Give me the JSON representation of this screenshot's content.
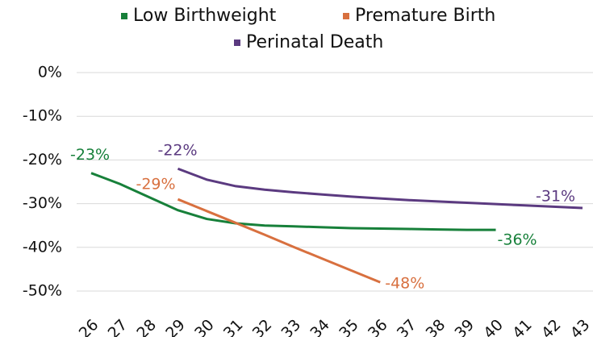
{
  "chart_data": {
    "type": "line",
    "categories": [
      "26",
      "27",
      "28",
      "29",
      "30",
      "31",
      "32",
      "33",
      "34",
      "35",
      "36",
      "37",
      "38",
      "39",
      "40",
      "41",
      "42",
      "43"
    ],
    "series": [
      {
        "name": "Low Birthweight",
        "color": "#17803a",
        "values": [
          -23,
          -25.5,
          -28.5,
          -31.5,
          -33.5,
          -34.5,
          -35,
          -35.2,
          -35.4,
          -35.6,
          -35.7,
          -35.8,
          -35.9,
          -36,
          -36,
          null,
          null,
          null
        ],
        "value_labels": [
          "-23%",
          null,
          null,
          null,
          null,
          null,
          null,
          null,
          null,
          null,
          null,
          null,
          null,
          null,
          "-36%",
          null,
          null,
          null
        ]
      },
      {
        "name": "Premature Birth",
        "color": "#d8703f",
        "values": [
          null,
          null,
          null,
          -29,
          -31.7,
          -34.4,
          -37.1,
          -39.9,
          -42.6,
          -45.3,
          -48,
          null,
          null,
          null,
          null,
          null,
          null,
          null
        ],
        "value_labels": [
          null,
          null,
          null,
          "-29%",
          null,
          null,
          null,
          null,
          null,
          null,
          "-48%",
          null,
          null,
          null,
          null,
          null,
          null,
          null
        ]
      },
      {
        "name": "Perinatal Death",
        "color": "#5b3a80",
        "values": [
          null,
          null,
          null,
          -22,
          -24.5,
          -26,
          -26.8,
          -27.4,
          -27.9,
          -28.4,
          -28.8,
          -29.2,
          -29.5,
          -29.8,
          -30.1,
          -30.4,
          -30.7,
          -31
        ],
        "value_labels": [
          null,
          null,
          null,
          "-22%",
          null,
          null,
          null,
          null,
          null,
          null,
          null,
          null,
          null,
          null,
          null,
          null,
          null,
          "-31%"
        ]
      }
    ],
    "ylim": [
      -50,
      0
    ],
    "yticks": [
      {
        "value": -50,
        "label": "-50%"
      },
      {
        "value": -40,
        "label": "-40%"
      },
      {
        "value": -30,
        "label": "-30%"
      },
      {
        "value": -20,
        "label": "-20%"
      },
      {
        "value": -10,
        "label": "-10%"
      },
      {
        "value": 0,
        "label": "0%"
      }
    ],
    "grid": true
  }
}
